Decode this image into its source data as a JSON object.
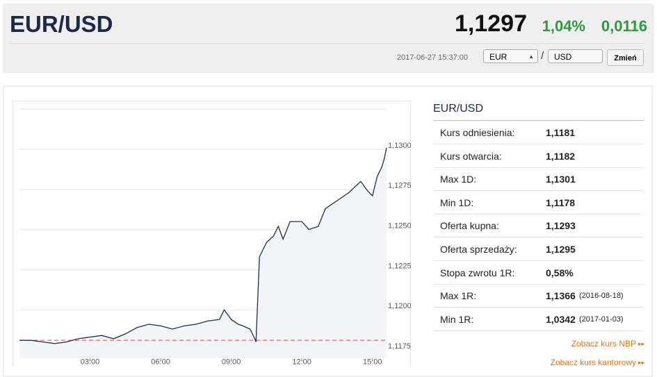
{
  "header": {
    "title": "EUR/USD",
    "price": "1,1297",
    "change_pct": "1,04%",
    "change": "0,0116",
    "timestamp": "2017-06-27 15:37:00",
    "from": "EUR",
    "separator": "/",
    "to": "USD",
    "button": "Zmień"
  },
  "chart_data": {
    "type": "line",
    "x": [
      0,
      0.5,
      1,
      1.5,
      2,
      2.5,
      3,
      3.5,
      4,
      4.5,
      5,
      5.5,
      6,
      6.5,
      7,
      7.5,
      8,
      8.5,
      8.7,
      9,
      9.3,
      9.5,
      9.8,
      10,
      10.05,
      10.2,
      10.5,
      10.8,
      11,
      11.2,
      11.5,
      12,
      12.3,
      12.7,
      13,
      13.5,
      14,
      14.5,
      14.8,
      15,
      15.2,
      15.4,
      15.5,
      15.6
    ],
    "values": [
      1.1181,
      1.1181,
      1.118,
      1.1179,
      1.118,
      1.1182,
      1.1183,
      1.1184,
      1.1182,
      1.1185,
      1.1189,
      1.1191,
      1.119,
      1.1188,
      1.119,
      1.1191,
      1.1193,
      1.1194,
      1.12,
      1.1194,
      1.1191,
      1.119,
      1.1188,
      1.1182,
      1.118,
      1.1233,
      1.1242,
      1.1246,
      1.1252,
      1.1244,
      1.1255,
      1.1255,
      1.125,
      1.1252,
      1.1263,
      1.1268,
      1.1273,
      1.128,
      1.1274,
      1.1271,
      1.1283,
      1.1289,
      1.1294,
      1.1301
    ],
    "color": "#1d2d4a",
    "reference": 1.1181,
    "reference_color": "#e0454a",
    "xlim": [
      0,
      15.6
    ],
    "xticks": [
      {
        "value": 3,
        "label": "03:00"
      },
      {
        "value": 6,
        "label": "06:00"
      },
      {
        "value": 9,
        "label": "09:00"
      },
      {
        "value": 12,
        "label": "12:00"
      },
      {
        "value": 15,
        "label": "15:00"
      }
    ],
    "ylim": [
      1.117,
      1.1325
    ],
    "yticks": [
      {
        "value": 1.1175,
        "label": "1,1175"
      },
      {
        "value": 1.12,
        "label": "1,1200"
      },
      {
        "value": 1.1225,
        "label": "1,1225"
      },
      {
        "value": 1.125,
        "label": "1,1250"
      },
      {
        "value": 1.1275,
        "label": "1,1275"
      },
      {
        "value": 1.13,
        "label": "1,1300"
      }
    ],
    "grid": true
  },
  "panel": {
    "title": "EUR/USD",
    "rows": [
      {
        "label": "Kurs odniesienia:",
        "value": "1,1181"
      },
      {
        "label": "Kurs otwarcia:",
        "value": "1,1182"
      },
      {
        "label": "Max 1D:",
        "value": "1,1301"
      },
      {
        "label": "Min 1D:",
        "value": "1,1178"
      },
      {
        "label": "Oferta kupna:",
        "value": "1,1293"
      },
      {
        "label": "Oferta sprzedaży:",
        "value": "1,1295"
      },
      {
        "label": "Stopa zwrotu 1R:",
        "value": "0,58%"
      },
      {
        "label": "Max 1R:",
        "value": "1,1366",
        "date": "(2016-08-18)"
      },
      {
        "label": "Min 1R:",
        "value": "1,0342",
        "date": "(2017-01-03)"
      }
    ],
    "links": [
      "Zobacz kurs NBP",
      "Zobacz kurs kantorowy"
    ]
  }
}
